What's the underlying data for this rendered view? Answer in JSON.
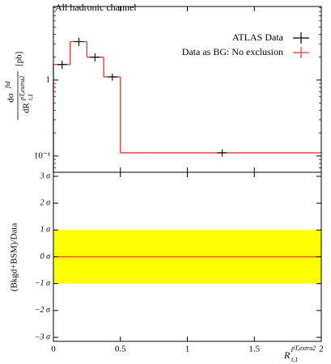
{
  "chart_data": [
    {
      "type": "histogram",
      "title": "All hadronic channel",
      "ylabel": {
        "numerator": "dσ",
        "numerator_sup": "fid",
        "denominator": "dR",
        "denominator_sub": "t,1",
        "denominator_sup": "pT,extra2",
        "unit": "[pb]"
      },
      "log_y": true,
      "xlim": [
        0,
        2
      ],
      "xticks": [
        0,
        0.5,
        1,
        1.5,
        2
      ],
      "ylim": [
        0.061,
        9.3
      ],
      "yticks": [
        {
          "value": 0.1,
          "label": "10⁻¹"
        },
        1
      ],
      "legend": "upper right",
      "bins": [
        0,
        0.125,
        0.25,
        0.375,
        0.5,
        2
      ],
      "series": [
        {
          "name": "ATLAS Data",
          "color": "#000000",
          "x": [
            0.065,
            0.19,
            0.31,
            0.44,
            1.26
          ],
          "values": [
            1.6,
            3.2,
            2.0,
            1.1,
            0.11
          ],
          "errors": [
            0.2,
            0.4,
            0.25,
            0.12,
            0.012
          ]
        },
        {
          "name": "Data as BG: No exclusion",
          "color": "#e8382b",
          "values": [
            1.6,
            3.2,
            2.0,
            1.1,
            0.11
          ]
        }
      ]
    },
    {
      "type": "ratio",
      "ylabel": "(Bkgd+BSM)/Data",
      "xlabel": {
        "base": "R",
        "sub": "t,1",
        "sup": "pT,extra2"
      },
      "xlim": [
        0,
        2
      ],
      "xticks": [
        0,
        0.5,
        1,
        1.5,
        2
      ],
      "ylim": [
        -3.15,
        3.15
      ],
      "yticks": [
        {
          "value": 3,
          "label": "3 σ"
        },
        {
          "value": 2,
          "label": "2 σ"
        },
        {
          "value": 1,
          "label": "1 σ"
        },
        {
          "value": 0,
          "label": "0 σ"
        },
        {
          "value": -1,
          "label": "−1 σ"
        },
        {
          "value": -2,
          "label": "−2 σ"
        },
        {
          "value": -3,
          "label": "−3 σ"
        }
      ],
      "band": {
        "values": [
          -1,
          1
        ],
        "color": "#ffff00"
      },
      "line": {
        "value": 0,
        "color": "#e8382b"
      }
    }
  ]
}
